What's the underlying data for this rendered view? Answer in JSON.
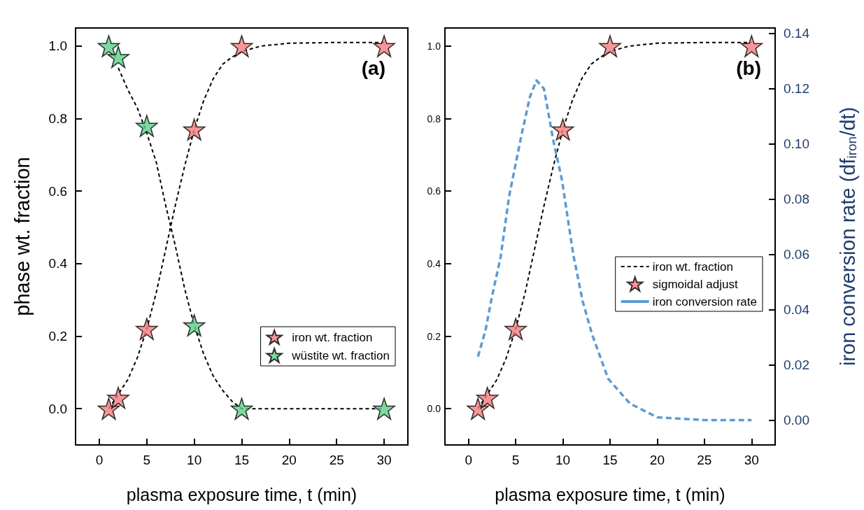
{
  "chart_data": [
    {
      "type": "scatter",
      "annotations": [
        "(a)"
      ],
      "xlabel": "plasma exposure time, t (min)",
      "ylabel": "phase wt. fraction",
      "xlim": [
        -2.5,
        32.5
      ],
      "xticks": [
        0,
        5,
        10,
        15,
        20,
        25,
        30
      ],
      "ylim": [
        -0.1,
        1.05
      ],
      "yticks": [
        {
          "value": 0,
          "label": "0.0"
        },
        {
          "value": 0.2,
          "label": "0.2"
        },
        {
          "value": 0.4,
          "label": "0.4"
        },
        {
          "value": 0.6,
          "label": "0.6"
        },
        {
          "value": 0.8,
          "label": "0.8"
        },
        {
          "value": 1,
          "label": "1.0"
        }
      ],
      "legend": "bottom right",
      "series": [
        {
          "type": "line",
          "color": "#000000",
          "line_style": "dashed",
          "marker": "none",
          "x": [
            1,
            2,
            3,
            4,
            5,
            6,
            7,
            8,
            9,
            10,
            11,
            12,
            13,
            14,
            15,
            17,
            20,
            25,
            30
          ],
          "values": [
            0,
            0.04,
            0.08,
            0.14,
            0.22,
            0.32,
            0.44,
            0.56,
            0.67,
            0.77,
            0.85,
            0.91,
            0.95,
            0.97,
            0.985,
            1,
            1.008,
            1.01,
            1.01
          ]
        },
        {
          "type": "line",
          "color": "#000000",
          "line_style": "dashed",
          "marker": "none",
          "x": [
            2,
            3,
            4,
            5,
            6,
            7,
            8,
            9,
            10,
            11,
            12,
            13,
            14,
            15,
            20,
            30
          ],
          "values": [
            0.94,
            0.88,
            0.83,
            0.76,
            0.68,
            0.56,
            0.45,
            0.33,
            0.23,
            0.15,
            0.09,
            0.05,
            0.02,
            0,
            0,
            0
          ]
        },
        {
          "name": "iron wt. fraction",
          "type": "scatter",
          "color": "#f47c7c",
          "marker": "star",
          "x": [
            1,
            2,
            5,
            10,
            15,
            30
          ],
          "values": [
            0,
            0.03,
            0.22,
            0.77,
            1,
            1
          ]
        },
        {
          "name": "wüstite wt. fraction",
          "type": "scatter",
          "color": "#5ecf8a",
          "marker": "star",
          "x": [
            1,
            2,
            5,
            10,
            15,
            30
          ],
          "values": [
            1,
            0.97,
            0.78,
            0.23,
            0,
            0
          ]
        }
      ]
    },
    {
      "type": "scatter",
      "annotations": [
        "(b)"
      ],
      "xlabel": "plasma exposure time, t (min)",
      "y2label": "iron conversion rate (df$_{iron}$/dt)",
      "xlim": [
        -2.5,
        32.5
      ],
      "xticks": [
        0,
        5,
        10,
        15,
        20,
        25,
        30
      ],
      "ylim": [
        -0.1,
        1.05
      ],
      "yticks": [
        {
          "value": 0,
          "label": "0.0"
        },
        {
          "value": 0.2,
          "label": "0.2"
        },
        {
          "value": 0.4,
          "label": "0.4"
        },
        {
          "value": 0.6,
          "label": "0.6"
        },
        {
          "value": 0.8,
          "label": "0.8"
        },
        {
          "value": 1,
          "label": "1.0"
        }
      ],
      "y2lim": [
        -0.009,
        0.142
      ],
      "y2ticks": [
        {
          "value": 0,
          "label": "0.00"
        },
        {
          "value": 0.02,
          "label": "0.02"
        },
        {
          "value": 0.04,
          "label": "0.04"
        },
        {
          "value": 0.06,
          "label": "0.06"
        },
        {
          "value": 0.08,
          "label": "0.08"
        },
        {
          "value": 0.1,
          "label": "0.10"
        },
        {
          "value": 0.12,
          "label": "0.12"
        },
        {
          "value": 0.14,
          "label": "0.14"
        }
      ],
      "legend": "right",
      "series": [
        {
          "name": "iron wt. fraction",
          "type": "line",
          "color": "#000000",
          "line_style": "dashed",
          "marker": "none",
          "x": [
            1,
            2,
            3,
            4,
            5,
            6,
            7,
            8,
            9,
            10,
            11,
            12,
            13,
            14,
            15,
            17,
            20,
            25,
            30
          ],
          "values": [
            0,
            0.04,
            0.08,
            0.14,
            0.22,
            0.32,
            0.44,
            0.56,
            0.67,
            0.77,
            0.85,
            0.91,
            0.95,
            0.97,
            0.985,
            1,
            1.008,
            1.01,
            1.01
          ]
        },
        {
          "name": "sigmoidal adjust",
          "type": "scatter",
          "color": "#f47c7c",
          "marker": "star",
          "x": [
            1,
            2,
            5,
            10,
            15,
            30
          ],
          "values": [
            0,
            0.03,
            0.22,
            0.77,
            1,
            1
          ]
        },
        {
          "name": "iron conversion rate",
          "type": "line",
          "axis": "y2",
          "color": "#5b9bd5",
          "line_style": "dashed",
          "marker": "none",
          "x": [
            1,
            1.8,
            2.5,
            3.4,
            4.3,
            5.6,
            6.5,
            7.2,
            8,
            9,
            9.9,
            10.3,
            11.1,
            12.1,
            13.1,
            14.8,
            17.1,
            20,
            25,
            30
          ],
          "values": [
            0.023,
            0.0325,
            0.045,
            0.059,
            0.081,
            0.103,
            0.117,
            0.123,
            0.12,
            0.101,
            0.087,
            0.078,
            0.06,
            0.043,
            0.031,
            0.015,
            0.006,
            0.001,
            0,
            0
          ]
        }
      ]
    }
  ]
}
